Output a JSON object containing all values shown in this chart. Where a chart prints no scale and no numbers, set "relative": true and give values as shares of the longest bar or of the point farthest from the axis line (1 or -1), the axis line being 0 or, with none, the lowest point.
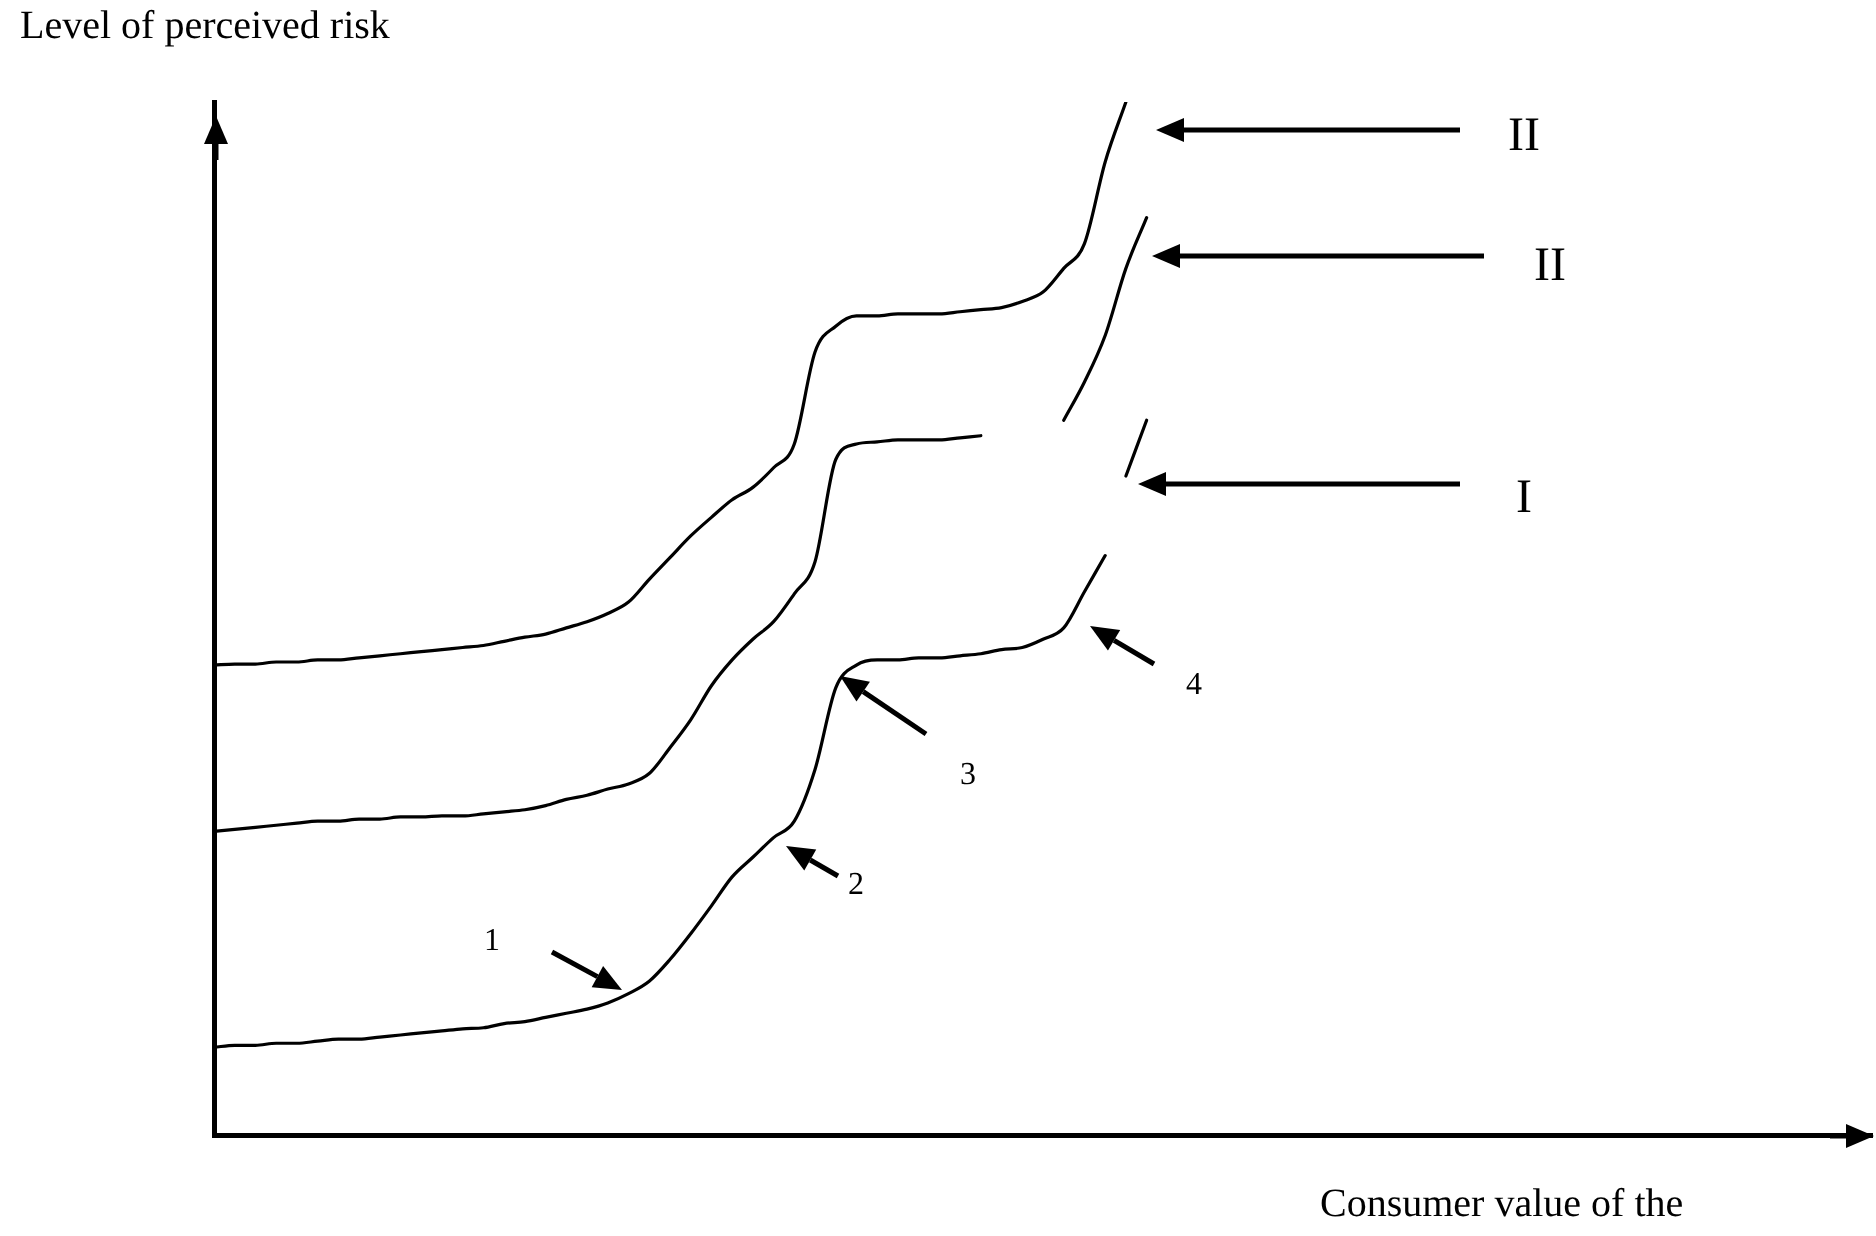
{
  "chart_data": {
    "type": "line",
    "relative": true,
    "marker": "none",
    "legend": false,
    "grid": false,
    "xlabel": "Consumer value of the",
    "ylabel": "Level of perceived risk",
    "annotations": [
      "II",
      "II",
      "I",
      "1",
      "2",
      "3",
      "4"
    ],
    "categories": [
      null,
      null,
      null,
      null,
      null,
      null,
      null,
      null,
      null,
      null,
      null,
      null,
      null,
      null,
      null,
      null,
      null,
      null,
      null,
      null,
      null,
      null,
      null,
      null,
      null,
      null,
      null,
      null,
      null,
      null,
      null,
      null,
      null,
      null,
      null,
      null,
      null,
      null,
      null,
      null,
      null,
      null,
      null,
      null,
      null,
      null,
      null,
      null,
      null,
      null,
      null,
      null,
      null,
      null,
      null,
      null,
      null,
      null,
      null,
      null,
      null,
      null,
      null,
      null,
      null,
      null,
      null,
      null,
      null,
      null,
      null,
      null,
      null,
      null,
      null,
      null,
      null,
      null,
      null,
      null,
      null
    ],
    "series": [
      {
        "color": "#000000",
        "values": [
          0.455,
          0.456,
          0.456,
          0.458,
          0.458,
          0.46,
          0.46,
          0.462,
          0.464,
          0.466,
          0.468,
          0.47,
          0.472,
          0.474,
          0.478,
          0.482,
          0.485,
          0.491,
          0.497,
          0.505,
          0.516,
          0.538,
          0.559,
          0.58,
          0.598,
          0.615,
          0.627,
          0.646,
          0.669,
          0.758,
          0.783,
          0.793,
          0.793,
          0.795,
          0.795,
          0.795,
          0.797,
          0.799,
          0.801,
          0.807,
          0.816,
          0.839,
          0.863,
          0.942,
          1,
          null,
          null,
          null,
          null,
          null,
          null,
          null,
          null,
          null,
          null,
          null,
          null,
          null,
          null,
          null,
          null,
          null,
          null,
          null,
          null,
          null,
          null,
          null,
          null,
          null,
          null,
          null,
          null,
          null,
          null,
          null,
          null,
          null,
          null,
          null,
          null
        ]
      },
      {
        "color": "#000000",
        "values": [
          0.294,
          0.296,
          0.298,
          0.3,
          0.302,
          0.304,
          0.304,
          0.306,
          0.306,
          0.308,
          0.308,
          0.309,
          0.309,
          0.311,
          0.313,
          0.315,
          0.319,
          0.325,
          0.329,
          0.335,
          0.34,
          0.35,
          0.375,
          0.402,
          0.435,
          0.46,
          0.48,
          0.497,
          0.524,
          0.555,
          0.654,
          0.669,
          0.671,
          0.673,
          0.673,
          0.673,
          0.675,
          0.677,
          null,
          null,
          null,
          null,
          null,
          null,
          null,
          null,
          null,
          null,
          null,
          null,
          null,
          null,
          null,
          null,
          null,
          null,
          null,
          null,
          null,
          null,
          null,
          null,
          null,
          null,
          null,
          null,
          null,
          null,
          null,
          null,
          null,
          null,
          null,
          null,
          null,
          null,
          null,
          null,
          null,
          null,
          null
        ]
      },
      {
        "color": "#000000",
        "values": [
          null,
          null,
          null,
          null,
          null,
          null,
          null,
          null,
          null,
          null,
          null,
          null,
          null,
          null,
          null,
          null,
          null,
          null,
          null,
          null,
          null,
          null,
          null,
          null,
          null,
          null,
          null,
          null,
          null,
          null,
          null,
          null,
          null,
          null,
          null,
          null,
          null,
          null,
          null,
          null,
          null,
          0.692,
          0.729,
          0.774,
          0.839,
          0.888,
          null,
          null,
          null,
          null,
          null,
          null,
          null,
          null,
          null,
          null,
          null,
          null,
          null,
          null,
          null,
          null,
          null,
          null,
          null,
          null,
          null,
          null,
          null,
          null,
          null,
          null,
          null,
          null,
          null,
          null,
          null,
          null,
          null,
          null,
          null
        ]
      },
      {
        "color": "#000000",
        "values": [
          0.085,
          0.087,
          0.087,
          0.089,
          0.089,
          0.091,
          0.093,
          0.093,
          0.095,
          0.097,
          0.099,
          0.101,
          0.103,
          0.104,
          0.108,
          0.11,
          0.114,
          0.118,
          0.122,
          0.128,
          0.137,
          0.149,
          0.17,
          0.195,
          0.222,
          0.25,
          0.269,
          0.288,
          0.304,
          0.354,
          0.433,
          0.455,
          0.46,
          0.46,
          0.462,
          0.462,
          0.464,
          0.466,
          0.47,
          0.472,
          0.48,
          0.491,
          0.526,
          0.561,
          null,
          null,
          null,
          null,
          null,
          null,
          null,
          null,
          null,
          null,
          null,
          null,
          null,
          null,
          null,
          null,
          null,
          null,
          null,
          null,
          null,
          null,
          null,
          null,
          null,
          null,
          null,
          null,
          null,
          null,
          null,
          null,
          null,
          null,
          null,
          null,
          null
        ]
      },
      {
        "color": "#000000",
        "values": [
          null,
          null,
          null,
          null,
          null,
          null,
          null,
          null,
          null,
          null,
          null,
          null,
          null,
          null,
          null,
          null,
          null,
          null,
          null,
          null,
          null,
          null,
          null,
          null,
          null,
          null,
          null,
          null,
          null,
          null,
          null,
          null,
          null,
          null,
          null,
          null,
          null,
          null,
          null,
          null,
          null,
          null,
          null,
          null,
          0.638,
          0.692,
          null,
          null,
          null,
          null,
          null,
          null,
          null,
          null,
          null,
          null,
          null,
          null,
          null,
          null,
          null,
          null,
          null,
          null,
          null,
          null,
          null,
          null,
          null,
          null,
          null,
          null,
          null,
          null,
          null,
          null,
          null,
          null,
          null,
          null,
          null
        ]
      }
    ]
  }
}
